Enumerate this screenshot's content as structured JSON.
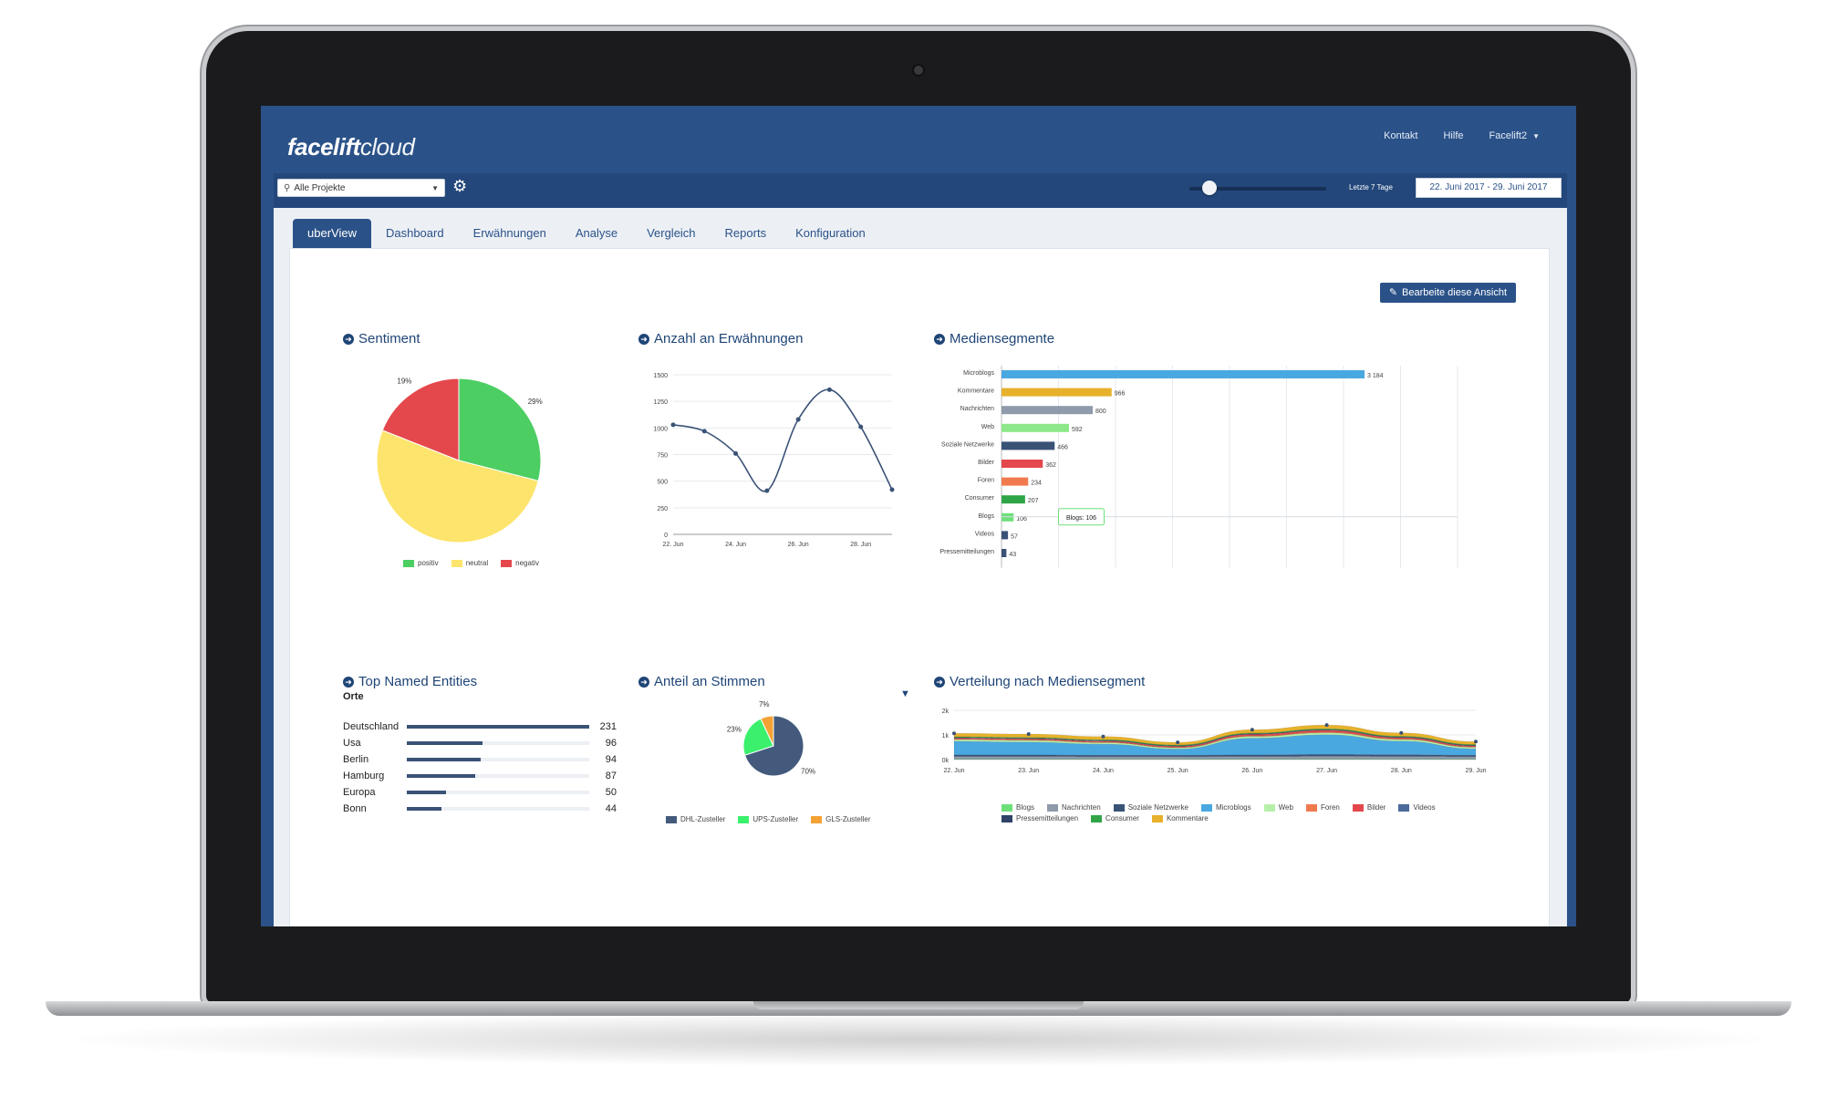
{
  "app": {
    "logo_bold": "facelift",
    "logo_light": "cloud",
    "topnav": {
      "contact": "Kontakt",
      "help": "Hilfe",
      "user": "Facelift2"
    }
  },
  "toolbar": {
    "project_select": "Alle Projekte",
    "slider_label": "Letzte 7 Tage",
    "slider_value_fraction": 0.1,
    "date_range": "22. Juni 2017 - 29. Juni 2017"
  },
  "tabs": [
    {
      "label": "uberView",
      "active": true
    },
    {
      "label": "Dashboard",
      "active": false
    },
    {
      "label": "Erwähnungen",
      "active": false
    },
    {
      "label": "Analyse",
      "active": false
    },
    {
      "label": "Vergleich",
      "active": false
    },
    {
      "label": "Reports",
      "active": false
    },
    {
      "label": "Konfiguration",
      "active": false
    }
  ],
  "edit_button": "Bearbeite diese Ansicht",
  "widgets": {
    "sentiment": "Sentiment",
    "mentions": "Anzahl an Erwähnungen",
    "media": "Mediensegmente",
    "entities": "Top Named Entities",
    "voices": "Anteil an Stimmen",
    "distribution": "Verteilung nach Mediensegment"
  },
  "entities": {
    "subtitle": "Orte",
    "max": 231,
    "items": [
      {
        "name": "Deutschland",
        "value": 231
      },
      {
        "name": "Usa",
        "value": 96
      },
      {
        "name": "Berlin",
        "value": 94
      },
      {
        "name": "Hamburg",
        "value": 87
      },
      {
        "name": "Europa",
        "value": 50
      },
      {
        "name": "Bonn",
        "value": 44
      }
    ]
  },
  "colors": {
    "primary": "#2b5288",
    "toolbar": "#23477a",
    "positive": "#4cce63",
    "neutral": "#fde46c",
    "negative": "#e4484c"
  },
  "chart_data": [
    {
      "id": "sentiment",
      "type": "pie",
      "slices": [
        {
          "name": "positiv",
          "value": 29,
          "label": "29%",
          "color": "#4cce63"
        },
        {
          "name": "neutral",
          "value": 52,
          "label": "52%",
          "color": "#fde46c"
        },
        {
          "name": "negativ",
          "value": 19,
          "label": "19%",
          "color": "#e4484c"
        }
      ],
      "legend": "bottom"
    },
    {
      "id": "mentions",
      "type": "line",
      "x": [
        "22. Jun",
        "23. Jun",
        "24. Jun",
        "25. Jun",
        "26. Jun",
        "27. Jun",
        "28. Jun",
        "29. Jun"
      ],
      "xtick_labels": [
        "22. Jun",
        "24. Jun",
        "26. Jun",
        "28. Jun"
      ],
      "y": [
        1030,
        970,
        760,
        410,
        1080,
        1360,
        1010,
        420
      ],
      "ylim": [
        0,
        1500
      ],
      "yticks": [
        0,
        250,
        500,
        750,
        1000,
        1250,
        1500
      ],
      "grid": true
    },
    {
      "id": "media",
      "type": "bar",
      "orientation": "horizontal",
      "categories": [
        "Microblogs",
        "Kommentare",
        "Nachrichten",
        "Web",
        "Soziale Netzwerke",
        "Bilder",
        "Foren",
        "Consumer",
        "Blogs",
        "Videos",
        "Pressemitteilungen"
      ],
      "values": [
        3184,
        966,
        800,
        592,
        466,
        362,
        234,
        207,
        106,
        57,
        43
      ],
      "value_labels": [
        "3 184",
        "966",
        "800",
        "592",
        "466",
        "362",
        "234",
        "207",
        "106",
        "57",
        "43"
      ],
      "colors": [
        "#4aa8e0",
        "#e7b12b",
        "#8f9aab",
        "#8de88a",
        "#3a5276",
        "#e4484c",
        "#f07a4e",
        "#30a548",
        "#6ee07a",
        "#3a5276",
        "#3a5276"
      ],
      "xlim": [
        0,
        4000
      ],
      "xticks": [
        0,
        500,
        1000,
        1500,
        2000,
        2500,
        3000,
        3500,
        4000
      ],
      "tooltip": "Blogs: 106",
      "grid": true
    },
    {
      "id": "voices",
      "type": "pie",
      "slices": [
        {
          "name": "DHL-Zusteller",
          "value": 70,
          "label": "70%",
          "color": "#435a7c"
        },
        {
          "name": "UPS-Zusteller",
          "value": 23,
          "label": "23%",
          "color": "#3bf06c"
        },
        {
          "name": "GLS-Zusteller",
          "value": 7,
          "label": "7%",
          "color": "#f5a234"
        }
      ],
      "legend": "bottom"
    },
    {
      "id": "distribution",
      "type": "area",
      "stacked": true,
      "x": [
        "22. Jun",
        "23. Jun",
        "24. Jun",
        "25. Jun",
        "26. Jun",
        "27. Jun",
        "28. Jun",
        "29. Jun"
      ],
      "ylim": [
        0,
        2000
      ],
      "ytick_labels": [
        "0k",
        "1k",
        "2k"
      ],
      "series": [
        {
          "name": "Blogs",
          "color": "#6ee07a",
          "values": [
            15,
            15,
            15,
            15,
            15,
            15,
            15,
            15
          ]
        },
        {
          "name": "Nachrichten",
          "color": "#8f9aab",
          "values": [
            110,
            110,
            100,
            100,
            110,
            120,
            110,
            100
          ]
        },
        {
          "name": "Soziale Netzwerke",
          "color": "#3a5276",
          "values": [
            60,
            60,
            60,
            60,
            60,
            70,
            70,
            60
          ]
        },
        {
          "name": "Microblogs",
          "color": "#4aa8e0",
          "values": [
            550,
            520,
            450,
            250,
            680,
            800,
            550,
            260
          ]
        },
        {
          "name": "Web",
          "color": "#b7f0a8",
          "values": [
            70,
            70,
            60,
            50,
            70,
            80,
            70,
            60
          ]
        },
        {
          "name": "Foren",
          "color": "#f07a4e",
          "values": [
            25,
            25,
            25,
            20,
            25,
            30,
            25,
            20
          ]
        },
        {
          "name": "Bilder",
          "color": "#e4484c",
          "values": [
            40,
            40,
            40,
            40,
            60,
            70,
            50,
            40
          ]
        },
        {
          "name": "Videos",
          "color": "#4c6a9a",
          "values": [
            15,
            15,
            15,
            15,
            15,
            15,
            15,
            15
          ]
        },
        {
          "name": "Pressemitteilungen",
          "color": "#2f4366",
          "values": [
            10,
            10,
            10,
            10,
            10,
            10,
            10,
            10
          ]
        },
        {
          "name": "Consumer",
          "color": "#30a548",
          "values": [
            30,
            30,
            30,
            30,
            30,
            35,
            30,
            30
          ]
        },
        {
          "name": "Kommentare",
          "color": "#e7b12b",
          "values": [
            140,
            140,
            130,
            110,
            140,
            160,
            140,
            120
          ]
        }
      ],
      "legend": "bottom"
    }
  ]
}
